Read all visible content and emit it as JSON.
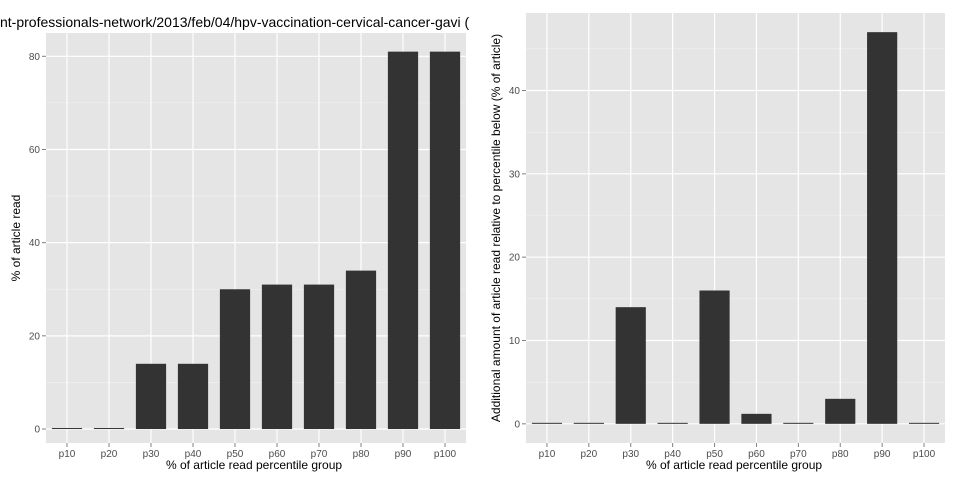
{
  "chart_data": [
    {
      "type": "bar",
      "title": "nt-professionals-network/2013/feb/04/hpv-vaccination-cervical-cancer-gavi (",
      "xlabel": "% of article read percentile group",
      "ylabel": "% of article read",
      "categories": [
        "p10",
        "p20",
        "p30",
        "p40",
        "p50",
        "p60",
        "p70",
        "p80",
        "p90",
        "p100"
      ],
      "values": [
        0,
        0,
        14,
        14,
        30,
        31,
        31,
        34,
        81,
        81
      ],
      "ylim": [
        -3,
        85
      ],
      "yticks": [
        0,
        20,
        40,
        60,
        80
      ],
      "ytick_labels": [
        "0",
        "20",
        "40",
        "60",
        "80"
      ],
      "bar_color": "#333333",
      "panel_color": "#e5e5e5",
      "grid": true
    },
    {
      "type": "bar",
      "title": "",
      "xlabel": "% of article read percentile group",
      "ylabel": "Additional amount of article read relative to percentile below (% of article)",
      "categories": [
        "p10",
        "p20",
        "p30",
        "p40",
        "p50",
        "p60",
        "p70",
        "p80",
        "p90",
        "p100"
      ],
      "values": [
        0,
        0,
        14,
        0,
        16,
        1.2,
        0,
        3,
        47,
        0
      ],
      "ylim": [
        -2.3,
        49.3
      ],
      "yticks": [
        0,
        10,
        20,
        30,
        40
      ],
      "ytick_labels": [
        "0",
        "10",
        "20",
        "30",
        "40"
      ],
      "bar_color": "#333333",
      "panel_color": "#e5e5e5",
      "grid": true
    }
  ]
}
